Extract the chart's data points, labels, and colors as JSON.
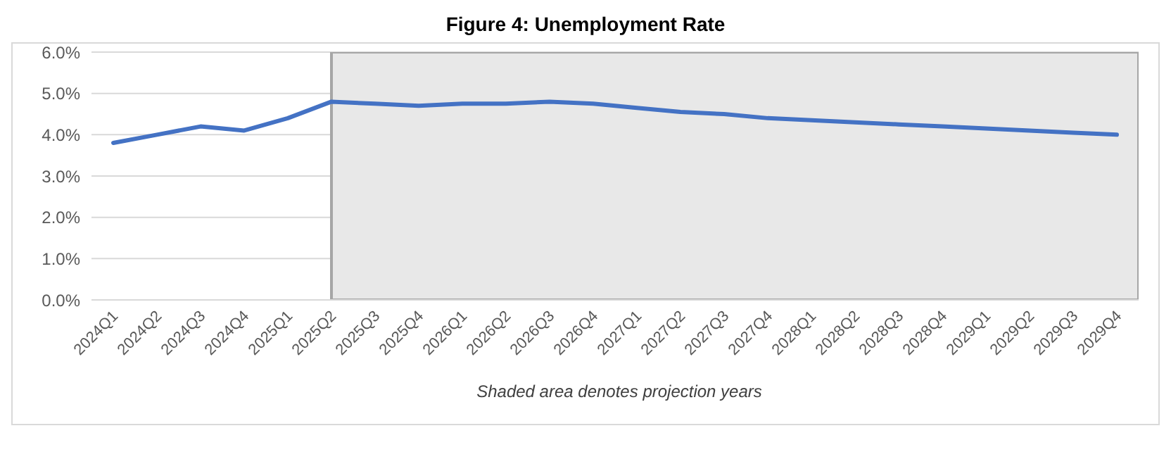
{
  "chart_data": {
    "type": "line",
    "title": "Figure 4: Unemployment Rate",
    "categories": [
      "2024Q1",
      "2024Q2",
      "2024Q3",
      "2024Q4",
      "2025Q1",
      "2025Q2",
      "2025Q3",
      "2025Q4",
      "2026Q1",
      "2026Q2",
      "2026Q3",
      "2026Q4",
      "2027Q1",
      "2027Q2",
      "2027Q3",
      "2027Q4",
      "2028Q1",
      "2028Q2",
      "2028Q3",
      "2028Q4",
      "2029Q1",
      "2029Q2",
      "2029Q3",
      "2029Q4"
    ],
    "series": [
      {
        "color": "#4472c4",
        "values": [
          3.8,
          4.0,
          4.2,
          4.1,
          4.4,
          4.8,
          4.75,
          4.7,
          4.75,
          4.75,
          4.8,
          4.75,
          4.65,
          4.55,
          4.5,
          4.4,
          4.35,
          4.3,
          4.25,
          4.2,
          4.15,
          4.1,
          4.05,
          4.0
        ]
      }
    ],
    "ylim": [
      0,
      6
    ],
    "yticks": [
      {
        "value": 0,
        "label": "0.0%"
      },
      {
        "value": 1,
        "label": "1.0%"
      },
      {
        "value": 2,
        "label": "2.0%"
      },
      {
        "value": 3,
        "label": "3.0%"
      },
      {
        "value": 4,
        "label": "4.0%"
      },
      {
        "value": 5,
        "label": "5.0%"
      },
      {
        "value": 6,
        "label": "6.0%"
      }
    ],
    "bands": [
      {
        "axis": "x",
        "from": "2025Q2",
        "to": "2029Q4",
        "color": "#e8e8e8"
      }
    ],
    "grid": "y",
    "marker": "none",
    "line_style": "solid",
    "annotations": [
      "Shaded area denotes projection years"
    ]
  }
}
